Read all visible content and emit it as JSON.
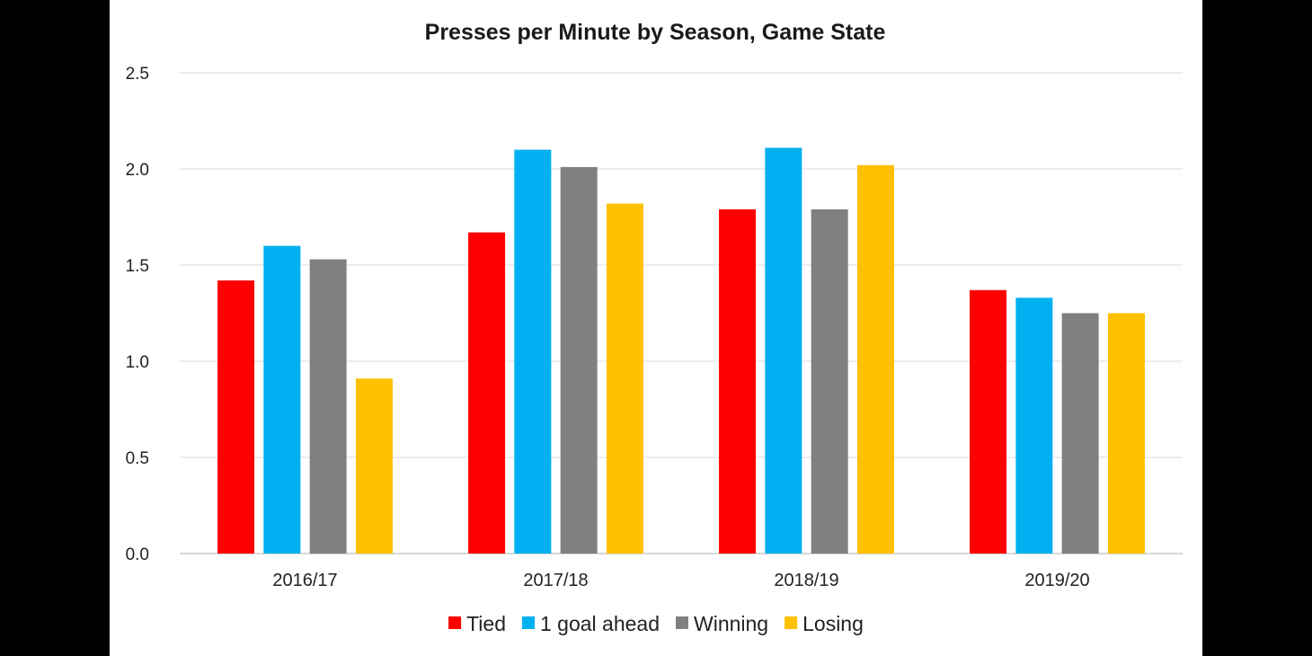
{
  "chart_data": {
    "type": "bar",
    "title": "Presses per Minute by Season, Game State",
    "xlabel": "",
    "ylabel": "",
    "ylim": [
      0,
      2.5
    ],
    "yticks": [
      "0.0",
      "0.5",
      "1.0",
      "1.5",
      "2.0",
      "2.5"
    ],
    "categories": [
      "2016/17",
      "2017/18",
      "2018/19",
      "2019/20"
    ],
    "grid": true,
    "legend_position": "bottom",
    "series": [
      {
        "name": "Tied",
        "color": "#ff0000",
        "values": [
          1.42,
          1.67,
          1.79,
          1.37
        ]
      },
      {
        "name": "1 goal ahead",
        "color": "#00b0f0",
        "values": [
          1.6,
          2.1,
          2.11,
          1.33
        ]
      },
      {
        "name": "Winning",
        "color": "#808080",
        "values": [
          1.53,
          2.01,
          1.79,
          1.25
        ]
      },
      {
        "name": "Losing",
        "color": "#ffc000",
        "values": [
          0.91,
          1.82,
          2.02,
          1.25
        ]
      }
    ]
  }
}
